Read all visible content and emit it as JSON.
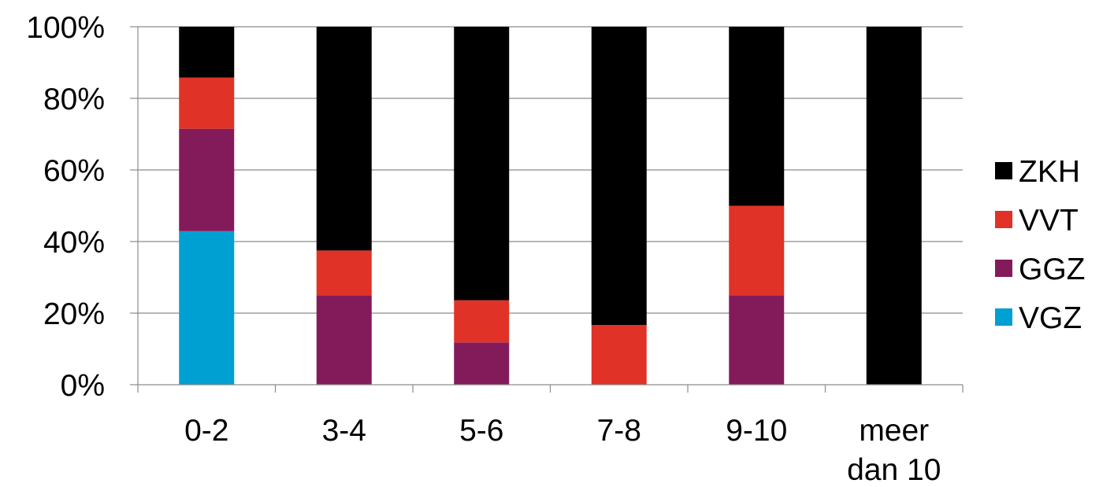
{
  "chart_data": {
    "type": "bar",
    "stacked": true,
    "percent_stacked": true,
    "categories": [
      "0-2",
      "3-4",
      "5-6",
      "7-8",
      "9-10",
      "meer dan 10"
    ],
    "category_label_lines": [
      [
        "0-2"
      ],
      [
        "3-4"
      ],
      [
        "5-6"
      ],
      [
        "7-8"
      ],
      [
        "9-10"
      ],
      [
        "meer",
        "dan 10"
      ]
    ],
    "series": [
      {
        "name": "VGZ",
        "color": "#00a0d2",
        "values": [
          42.9,
          0,
          0,
          0,
          0,
          0
        ]
      },
      {
        "name": "GGZ",
        "color": "#831b5b",
        "values": [
          28.6,
          25,
          11.8,
          0,
          25,
          0
        ]
      },
      {
        "name": "VVT",
        "color": "#e03226",
        "values": [
          14.3,
          12.5,
          11.8,
          16.7,
          25,
          0
        ]
      },
      {
        "name": "ZKH",
        "color": "#000000",
        "values": [
          14.2,
          62.5,
          76.4,
          83.3,
          50,
          100
        ]
      }
    ],
    "y_ticks": [
      "0%",
      "20%",
      "40%",
      "60%",
      "80%",
      "100%"
    ],
    "ylim": [
      0,
      100
    ],
    "grid": true,
    "legend_position": "right",
    "legend_order": [
      "ZKH",
      "VVT",
      "GGZ",
      "VGZ"
    ],
    "title": "",
    "xlabel": "",
    "ylabel": ""
  }
}
